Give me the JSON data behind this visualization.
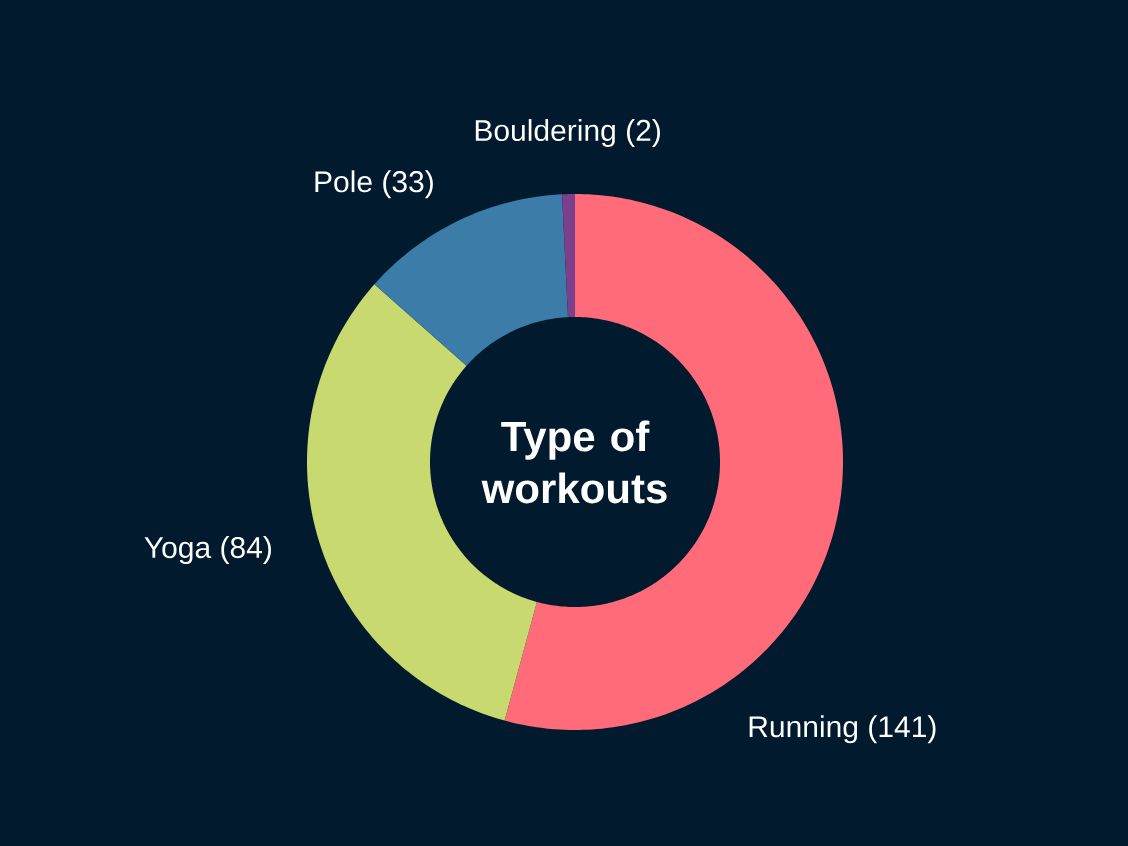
{
  "chart_data": {
    "type": "donut",
    "title": "Type of workouts",
    "categories": [
      "Running",
      "Yoga",
      "Pole",
      "Bouldering"
    ],
    "values": [
      141,
      84,
      33,
      2
    ],
    "colors": [
      "#ff6b78",
      "#c8d96f",
      "#3b7ca8",
      "#7b3f8c"
    ],
    "value_labels": [
      "(141)",
      "(84)",
      "(33)",
      "(2)"
    ]
  }
}
